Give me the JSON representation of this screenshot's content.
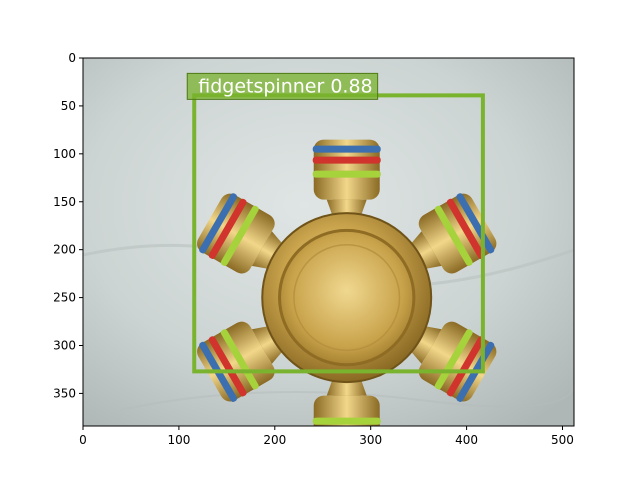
{
  "image": {
    "width": 512,
    "height": 384,
    "subject": "fidget spinner"
  },
  "axes": {
    "xlim": [
      0,
      512
    ],
    "ylim": [
      384,
      0
    ],
    "x_ticks": [
      {
        "value": 0,
        "label": "0"
      },
      {
        "value": 100,
        "label": "100"
      },
      {
        "value": 200,
        "label": "200"
      },
      {
        "value": 300,
        "label": "300"
      },
      {
        "value": 400,
        "label": "400"
      },
      {
        "value": 500,
        "label": "500"
      }
    ],
    "y_ticks": [
      {
        "value": 0,
        "label": "0"
      },
      {
        "value": 50,
        "label": "50"
      },
      {
        "value": 100,
        "label": "100"
      },
      {
        "value": 150,
        "label": "150"
      },
      {
        "value": 200,
        "label": "200"
      },
      {
        "value": 250,
        "label": "250"
      },
      {
        "value": 300,
        "label": "300"
      },
      {
        "value": 350,
        "label": "350"
      }
    ]
  },
  "detection": {
    "label": "fidgetspinner 0.88",
    "class_name": "fidgetspinner",
    "score": 0.88,
    "box": {
      "x0": 116,
      "y0": 39,
      "x1": 417,
      "y1": 327
    },
    "box_color": "#7ab32e"
  },
  "colors": {
    "background": "#c9d1d0",
    "brass": "#c8a24a",
    "brass_dark": "#8d6b22",
    "ring_blue": "#3b6fb0",
    "ring_red": "#d0342c",
    "ring_green": "#a6d23c"
  }
}
